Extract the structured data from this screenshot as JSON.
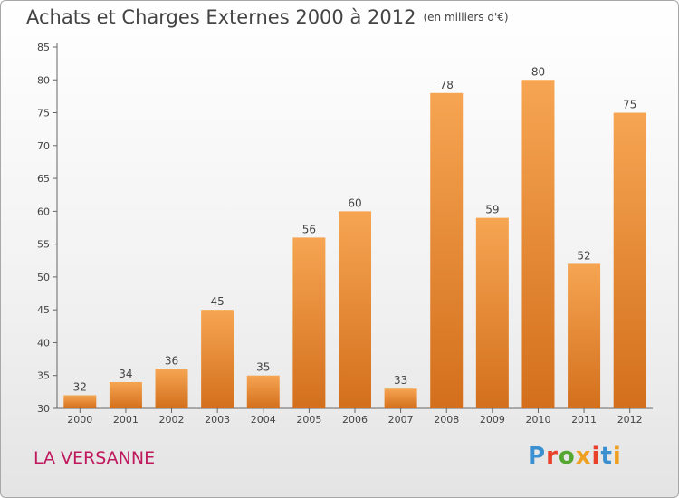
{
  "header": {
    "title": "Achats et Charges Externes 2000 à 2012",
    "subtitle": "(en milliers d'€)"
  },
  "footer": {
    "commune": "LA VERSANNE",
    "logo_text": "Proxiti"
  },
  "colors": {
    "bar_top": "#f6a552",
    "bar_bottom": "#d36f1c",
    "commune": "#c0185c",
    "logo_letters": [
      "#3a8fd0",
      "#e8402a",
      "#55a630",
      "#f0a020",
      "#e8402a",
      "#3a8fd0",
      "#f0a020"
    ]
  },
  "chart_data": {
    "type": "bar",
    "categories": [
      "2000",
      "2001",
      "2002",
      "2003",
      "2004",
      "2005",
      "2006",
      "2007",
      "2008",
      "2009",
      "2010",
      "2011",
      "2012"
    ],
    "values": [
      32,
      34,
      36,
      45,
      35,
      56,
      60,
      33,
      78,
      59,
      80,
      52,
      75
    ],
    "title": "Achats et Charges Externes 2000 à 2012",
    "subtitle": "(en milliers d'€)",
    "ylim": [
      30,
      85
    ],
    "yticks": [
      30,
      35,
      40,
      45,
      50,
      55,
      60,
      65,
      70,
      75,
      80,
      85
    ],
    "grid": false,
    "data_labels": true
  }
}
